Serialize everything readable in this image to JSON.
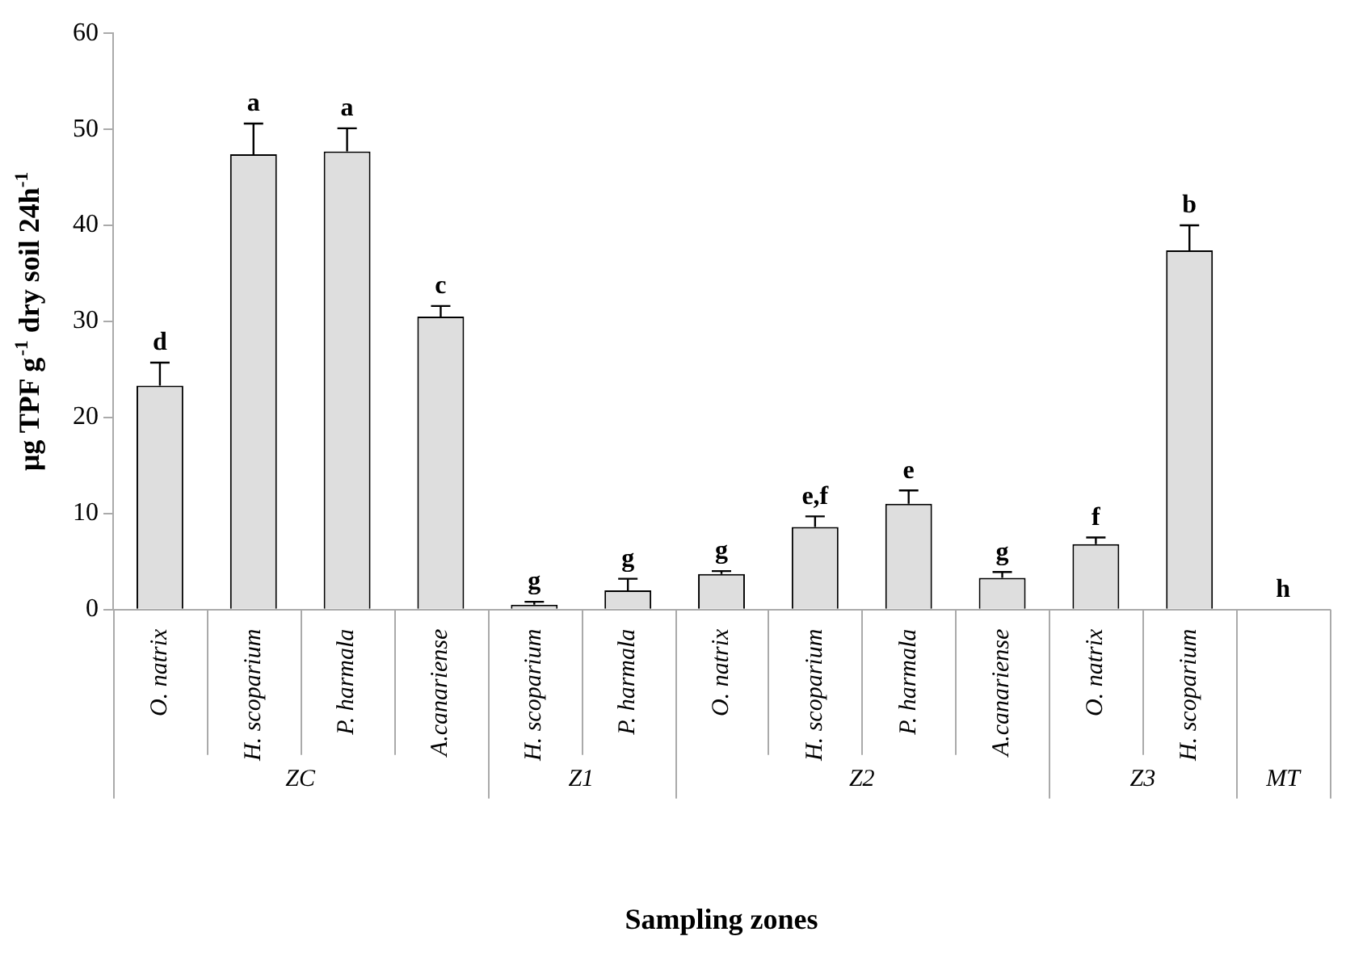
{
  "chart_data": {
    "type": "bar",
    "ylabel": "μg TPF g$^{-1}$ dry soil 24h$^{-1}$",
    "xlabel": "Sampling zones",
    "categories": [
      "O. natrix",
      "H. scoparium",
      "P. harmala",
      "A.canariense",
      "H. scoparium",
      "P. harmala",
      "O. natrix",
      "H. scoparium",
      "P. harmala",
      "A.canariense",
      "O. natrix",
      "H. scoparium",
      null
    ],
    "values": [
      23.3,
      47.4,
      47.7,
      30.5,
      0.5,
      2.0,
      3.7,
      8.6,
      11.0,
      3.3,
      6.8,
      37.4,
      0
    ],
    "errors": [
      [
        23.3,
        25.7
      ],
      [
        47.4,
        50.6
      ],
      [
        47.7,
        50.1
      ],
      [
        30.5,
        31.6
      ],
      [
        0.5,
        0.8
      ],
      [
        2.0,
        3.2
      ],
      [
        3.7,
        4.0
      ],
      [
        8.6,
        9.7
      ],
      [
        11.0,
        12.4
      ],
      [
        3.3,
        3.9
      ],
      [
        6.8,
        7.5
      ],
      [
        37.4,
        40.0
      ],
      null
    ],
    "value_labels": [
      "d",
      "a",
      "a",
      "c",
      "g",
      "g",
      "g",
      "e,f",
      "e",
      "g",
      "f",
      "b",
      "h"
    ],
    "color": "#dedede",
    "annotations": [
      "ZC",
      "Z1",
      "Z2",
      "Z3",
      "MT"
    ],
    "ylim": [
      0,
      60
    ],
    "yticks": [
      0,
      10,
      20,
      30,
      40,
      50,
      60
    ],
    "grid": false,
    "legend": false
  }
}
